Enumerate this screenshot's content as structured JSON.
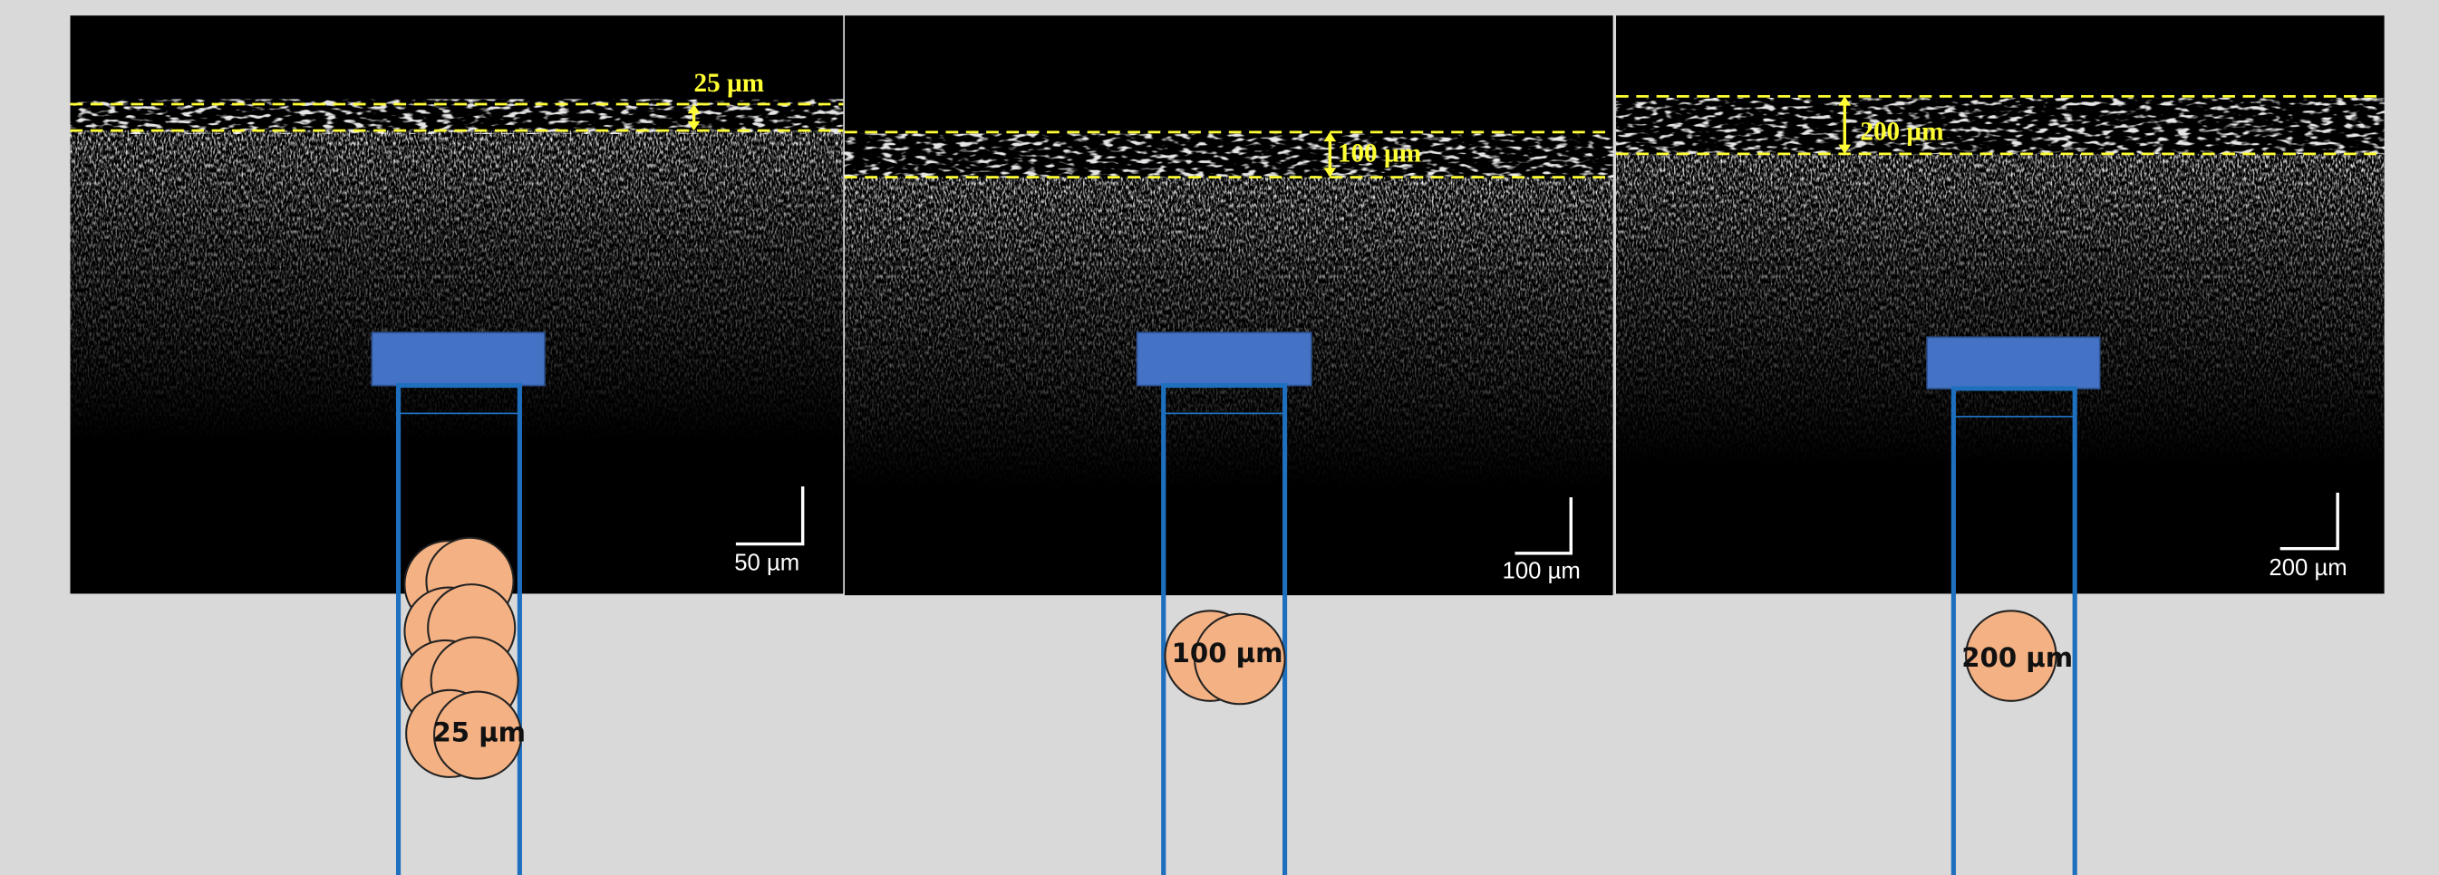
{
  "panels": [
    {
      "layer_label": "25 µm",
      "scale_label": "50 µm",
      "particle_label": "25 µm"
    },
    {
      "layer_label": "100 µm",
      "scale_label": "100 µm",
      "particle_label": "100 µm"
    },
    {
      "layer_label": "200 µm",
      "scale_label": "200 µm",
      "particle_label": "200 µm"
    }
  ]
}
